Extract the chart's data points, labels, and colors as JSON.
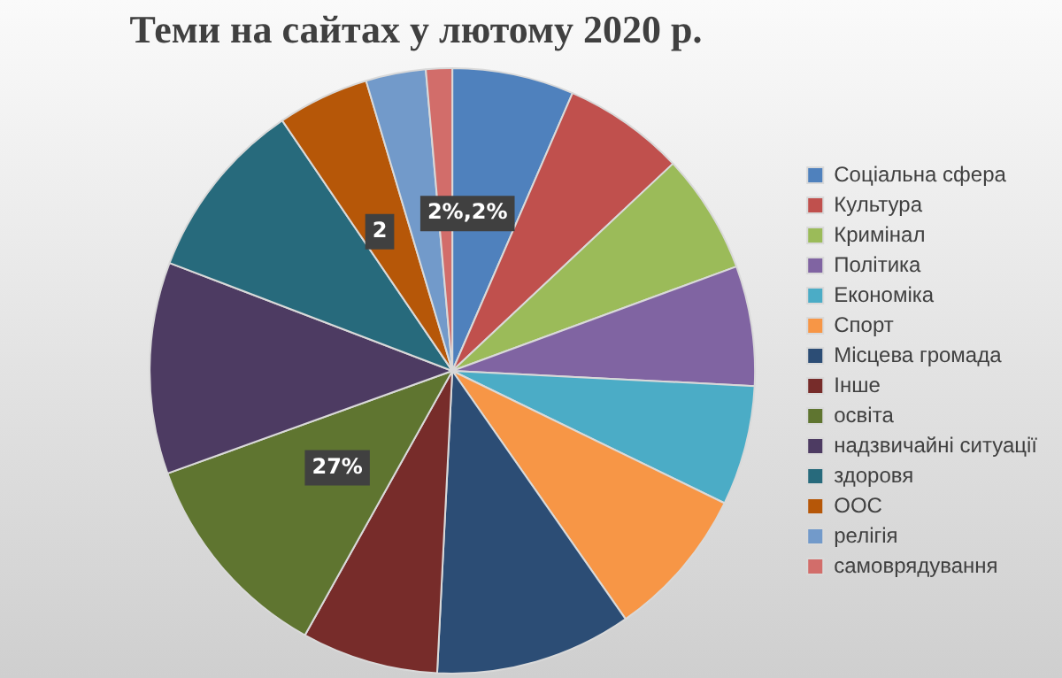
{
  "chart_data": {
    "type": "pie",
    "title": "Теми на сайтах у лютому 2020 р.",
    "categories": [
      "Соціальна сфера",
      "Культура",
      "Кримінал",
      "Політика",
      "Економіка",
      "Спорт",
      "Місцева громада",
      "Інше",
      "освіта",
      "надзвичайні ситуації",
      "здоровя",
      "ООС",
      "релігія",
      "самоврядування"
    ],
    "values": [
      6.5,
      6.5,
      6.4,
      6.4,
      6.4,
      8.1,
      10.5,
      7.3,
      11.4,
      11.3,
      9.7,
      4.9,
      3.2,
      1.4
    ],
    "colors": [
      "#4f81bd",
      "#c0504d",
      "#9bbb59",
      "#8064a2",
      "#4bacc6",
      "#f79646",
      "#2c4d75",
      "#772c2a",
      "#5f7530",
      "#4d3b62",
      "#276a7c",
      "#b65708",
      "#729aca",
      "#d26d6a"
    ],
    "annotations": [
      "2%,2%",
      "2",
      "27%"
    ],
    "legend": "right"
  }
}
